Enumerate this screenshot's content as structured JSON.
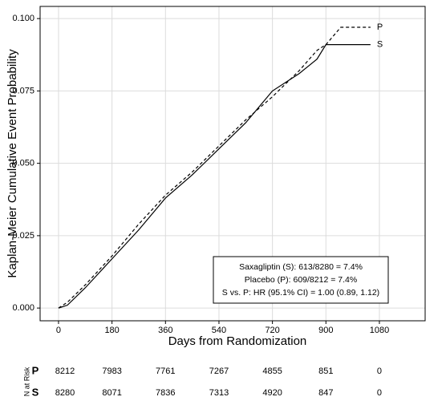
{
  "chart_data": {
    "type": "line",
    "xlabel": "Days from Randomization",
    "ylabel": "Kaplan-Meier Cumulative Event Probability",
    "xlim": [
      -62,
      1234
    ],
    "ylim": [
      -0.0044,
      0.1042
    ],
    "xticks": [
      0,
      180,
      360,
      540,
      720,
      900,
      1080
    ],
    "yticks": [
      {
        "value": 0,
        "label": "0.000"
      },
      {
        "value": 0.025,
        "label": "0.025"
      },
      {
        "value": 0.05,
        "label": "0.050"
      },
      {
        "value": 0.075,
        "label": "0.075"
      },
      {
        "value": 0.1,
        "label": "0.100"
      }
    ],
    "grid": true,
    "series": [
      {
        "name": "P",
        "color": "#000000",
        "dash": true,
        "x": [
          0,
          30,
          90,
          180,
          270,
          360,
          450,
          540,
          630,
          720,
          810,
          870,
          900,
          950,
          1050
        ],
        "values": [
          0,
          0.002,
          0.008,
          0.018,
          0.029,
          0.039,
          0.047,
          0.056,
          0.065,
          0.073,
          0.082,
          0.089,
          0.091,
          0.097,
          0.097
        ]
      },
      {
        "name": "S",
        "color": "#000000",
        "dash": false,
        "x": [
          0,
          30,
          90,
          180,
          270,
          360,
          450,
          540,
          630,
          720,
          810,
          870,
          900,
          1050
        ],
        "values": [
          0,
          0.001,
          0.007,
          0.017,
          0.027,
          0.038,
          0.046,
          0.055,
          0.064,
          0.075,
          0.081,
          0.086,
          0.091,
          0.091
        ]
      }
    ],
    "annotation": [
      "Saxagliptin (S): 613/8280 = 7.4%",
      "Placebo (P): 609/8212 = 7.4%",
      "S vs. P: HR (95.1% CI) = 1.00 (0.89, 1.12)"
    ],
    "risk_table": {
      "label": "N at Risk",
      "rows": [
        {
          "name": "P",
          "values": [
            8212,
            7983,
            7761,
            7267,
            4855,
            851,
            0
          ]
        },
        {
          "name": "S",
          "values": [
            8280,
            8071,
            7836,
            7313,
            4920,
            847,
            0
          ]
        }
      ]
    }
  }
}
